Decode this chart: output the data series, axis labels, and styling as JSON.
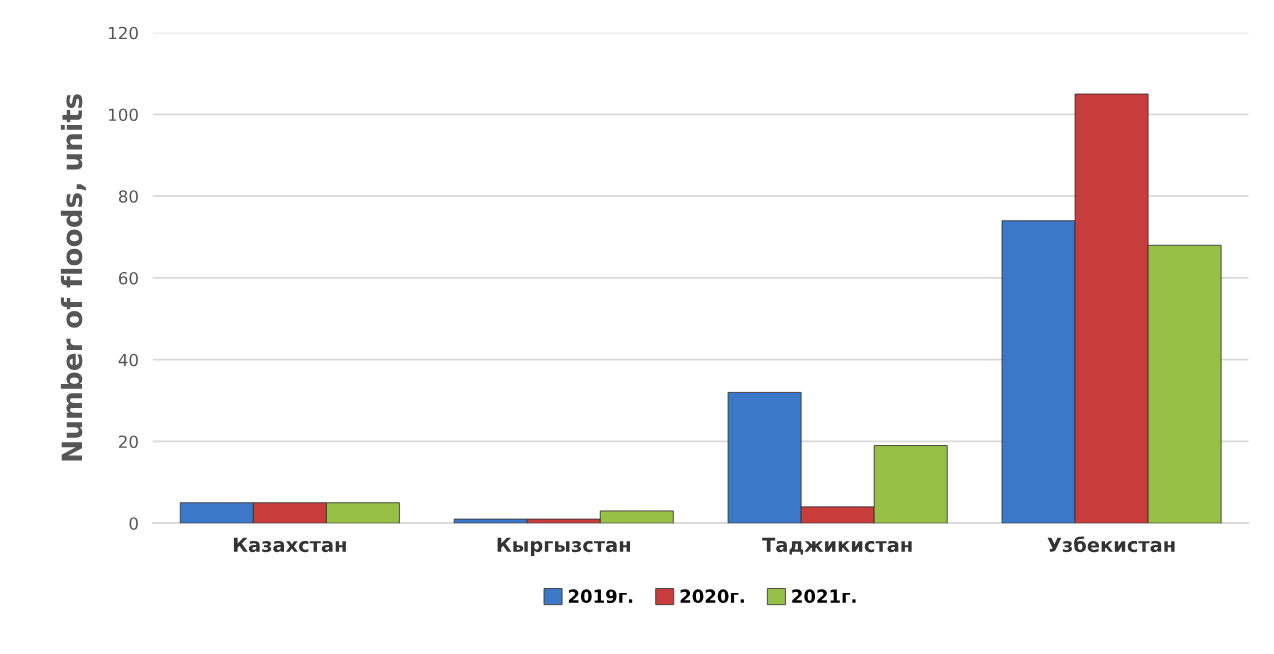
{
  "chart_data": {
    "type": "bar",
    "ylabel": "Number of floods, units",
    "categories": [
      "Казахстан",
      "Кыргызстан",
      "Таджикистан",
      "Узбекистан"
    ],
    "series": [
      {
        "name": "2019г.",
        "color": "#3c78c8",
        "values": [
          5,
          1,
          32,
          74
        ]
      },
      {
        "name": "2020г.",
        "color": "#c83c3c",
        "values": [
          5,
          1,
          4,
          105
        ]
      },
      {
        "name": "2021г.",
        "color": "#96c046",
        "values": [
          5,
          3,
          19,
          68
        ]
      }
    ],
    "ylim": [
      0,
      120
    ],
    "yticks": [
      0,
      20,
      40,
      60,
      80,
      100,
      120
    ],
    "grid": "y",
    "legend": "bottom"
  }
}
